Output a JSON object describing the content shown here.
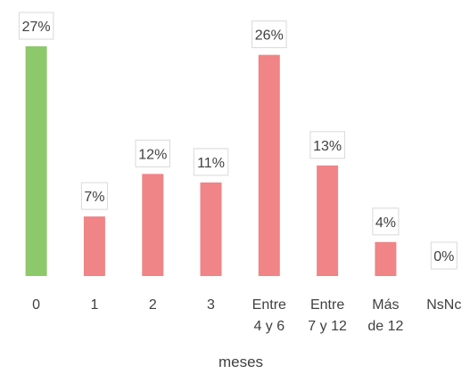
{
  "chart_data": {
    "type": "bar",
    "xlabel": "meses",
    "categories": [
      [
        "0"
      ],
      [
        "1"
      ],
      [
        "2"
      ],
      [
        "3"
      ],
      [
        "Entre",
        "4 y 6"
      ],
      [
        "Entre",
        "7 y 12"
      ],
      [
        "Más",
        "de 12"
      ],
      [
        "NsNc"
      ]
    ],
    "values": [
      27,
      7,
      12,
      11,
      26,
      13,
      4,
      0
    ],
    "data_labels": [
      "27%",
      "7%",
      "12%",
      "11%",
      "26%",
      "13%",
      "4%",
      "0%"
    ],
    "bar_colors": [
      "#8DC86A",
      "#F08486",
      "#F08486",
      "#F08486",
      "#F08486",
      "#F08486",
      "#F08486",
      "#F08486"
    ],
    "ylim": [
      0,
      27
    ],
    "grid": false,
    "legend": "none"
  }
}
